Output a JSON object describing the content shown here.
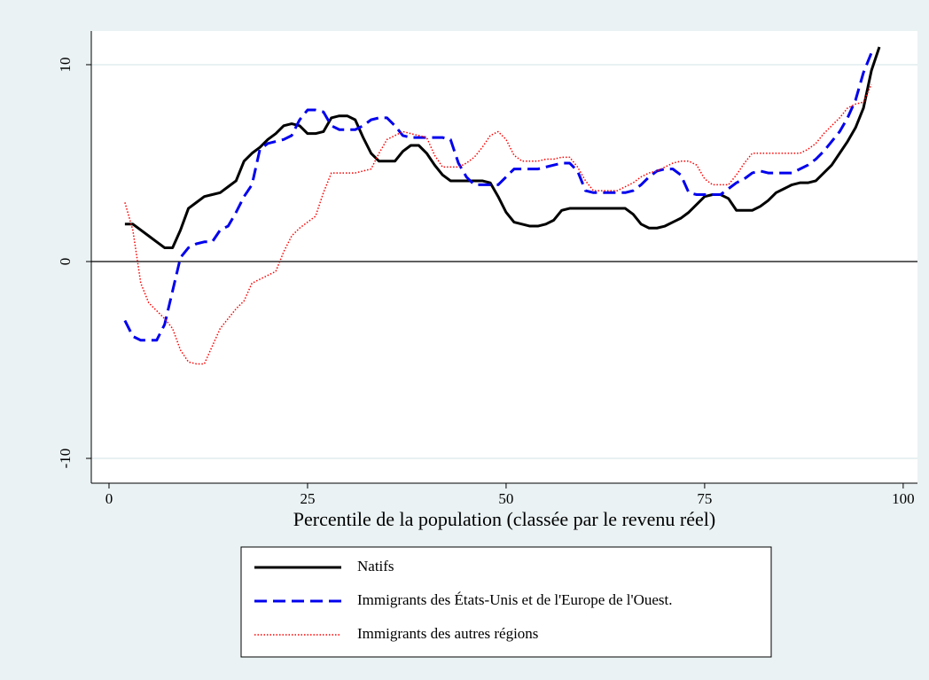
{
  "chart_data": {
    "type": "line",
    "xlabel": "Percentile de la population (classée par le revenu réel)",
    "x": [
      2,
      3,
      4,
      5,
      6,
      7,
      8,
      9,
      10,
      11,
      12,
      13,
      14,
      15,
      16,
      17,
      18,
      19,
      20,
      21,
      22,
      23,
      24,
      25,
      26,
      27,
      28,
      29,
      30,
      31,
      32,
      33,
      34,
      35,
      36,
      37,
      38,
      39,
      40,
      41,
      42,
      43,
      44,
      45,
      46,
      47,
      48,
      49,
      50,
      51,
      52,
      53,
      54,
      55,
      56,
      57,
      58,
      59,
      60,
      61,
      62,
      63,
      64,
      65,
      66,
      67,
      68,
      69,
      70,
      71,
      72,
      73,
      74,
      75,
      76,
      77,
      78,
      79,
      80,
      81,
      82,
      83,
      84,
      85,
      86,
      87,
      88,
      89,
      90,
      91,
      92,
      93,
      94,
      95,
      96,
      97
    ],
    "series": [
      {
        "name": "Natifs",
        "color": "#000000",
        "dash": "solid",
        "values": [
          1.9,
          1.9,
          1.6,
          1.3,
          1.0,
          0.7,
          0.7,
          1.6,
          2.7,
          3.0,
          3.3,
          3.4,
          3.5,
          3.8,
          4.1,
          5.1,
          5.5,
          5.8,
          6.2,
          6.5,
          6.9,
          7.0,
          6.9,
          6.5,
          6.5,
          6.6,
          7.3,
          7.4,
          7.4,
          7.2,
          6.3,
          5.5,
          5.1,
          5.1,
          5.1,
          5.6,
          5.9,
          5.9,
          5.5,
          4.9,
          4.4,
          4.1,
          4.1,
          4.1,
          4.1,
          4.1,
          4.0,
          3.3,
          2.5,
          2.0,
          1.9,
          1.8,
          1.8,
          1.9,
          2.1,
          2.6,
          2.7,
          2.7,
          2.7,
          2.7,
          2.7,
          2.7,
          2.7,
          2.7,
          2.4,
          1.9,
          1.7,
          1.7,
          1.8,
          2.0,
          2.2,
          2.5,
          2.9,
          3.3,
          3.4,
          3.4,
          3.2,
          2.6,
          2.6,
          2.6,
          2.8,
          3.1,
          3.5,
          3.7,
          3.9,
          4.0,
          4.0,
          4.1,
          4.5,
          4.9,
          5.5,
          6.1,
          6.8,
          7.8,
          9.7,
          10.9
        ]
      },
      {
        "name": "Immigrants des États-Unis et de l'Europe de l'Ouest.",
        "color": "#0000ee",
        "dash": "dashed",
        "values": [
          -3.0,
          -3.8,
          -4.0,
          -4.0,
          -4.0,
          -3.2,
          -1.5,
          0.2,
          0.7,
          0.9,
          1.0,
          1.0,
          1.6,
          1.8,
          2.5,
          3.3,
          3.9,
          5.7,
          6.0,
          6.1,
          6.2,
          6.4,
          7.2,
          7.7,
          7.7,
          7.6,
          6.9,
          6.7,
          6.7,
          6.7,
          6.9,
          7.2,
          7.3,
          7.3,
          6.9,
          6.4,
          6.3,
          6.3,
          6.3,
          6.3,
          6.3,
          6.2,
          5.0,
          4.3,
          3.9,
          3.9,
          3.9,
          3.9,
          4.3,
          4.7,
          4.7,
          4.7,
          4.7,
          4.8,
          4.9,
          5.0,
          5.0,
          4.6,
          3.6,
          3.5,
          3.5,
          3.5,
          3.5,
          3.5,
          3.6,
          3.9,
          4.3,
          4.6,
          4.7,
          4.7,
          4.4,
          3.5,
          3.4,
          3.4,
          3.4,
          3.4,
          3.7,
          4.0,
          4.2,
          4.5,
          4.6,
          4.5,
          4.5,
          4.5,
          4.5,
          4.7,
          4.9,
          5.2,
          5.6,
          6.1,
          6.6,
          7.3,
          8.2,
          9.6,
          10.6,
          null
        ]
      },
      {
        "name": "Immigrants des autres régions",
        "color": "#ff0000",
        "dash": "dotted",
        "values": [
          3.0,
          1.6,
          -1.1,
          -2.1,
          -2.5,
          -2.9,
          -3.4,
          -4.5,
          -5.1,
          -5.2,
          -5.2,
          -4.3,
          -3.4,
          -2.9,
          -2.4,
          -2.0,
          -1.1,
          -0.9,
          -0.7,
          -0.5,
          0.5,
          1.3,
          1.7,
          2.0,
          2.3,
          3.5,
          4.5,
          4.5,
          4.5,
          4.5,
          4.6,
          4.7,
          5.5,
          6.2,
          6.4,
          6.6,
          6.5,
          6.4,
          6.3,
          5.4,
          4.8,
          4.8,
          4.8,
          5.0,
          5.3,
          5.8,
          6.4,
          6.6,
          6.2,
          5.4,
          5.1,
          5.1,
          5.1,
          5.2,
          5.2,
          5.3,
          5.3,
          4.8,
          4.1,
          3.6,
          3.6,
          3.6,
          3.6,
          3.8,
          4.0,
          4.3,
          4.5,
          4.6,
          4.8,
          5.0,
          5.1,
          5.1,
          4.9,
          4.2,
          3.9,
          3.9,
          3.9,
          4.4,
          5.0,
          5.5,
          5.5,
          5.5,
          5.5,
          5.5,
          5.5,
          5.5,
          5.7,
          6.0,
          6.5,
          6.9,
          7.3,
          7.8,
          8.0,
          8.1,
          9.0,
          null
        ]
      }
    ],
    "xlim": [
      -2.23,
      101.8
    ],
    "xticks": [
      0,
      25,
      50,
      75,
      100
    ],
    "ylim": [
      -11.26,
      11.71
    ],
    "yticks": [
      -10,
      0,
      10
    ],
    "grid": true,
    "yline": 0,
    "legend": "bottom"
  }
}
